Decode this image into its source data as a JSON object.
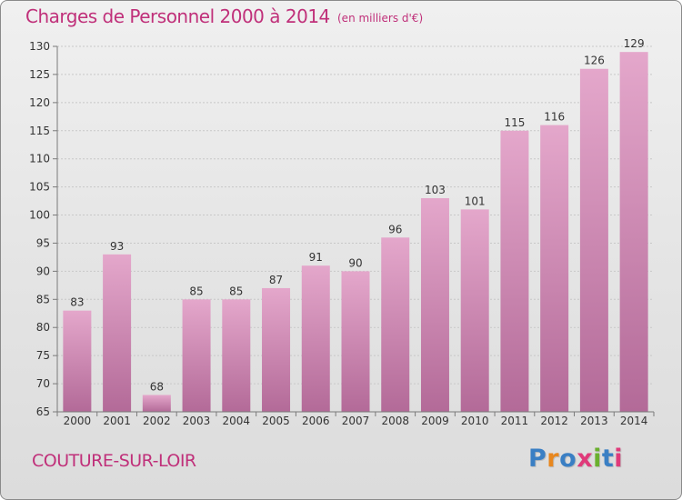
{
  "header": {
    "title": "Charges de Personnel 2000 à 2014",
    "subtitle": "(en milliers d'€)"
  },
  "footer": {
    "town": "COUTURE-SUR-LOIR",
    "logo_text": "Proxiti",
    "logo_colors": [
      "#3a7fc4",
      "#e8871e",
      "#3a7fc4",
      "#e03a7a",
      "#6ab02e",
      "#3a7fc4",
      "#e03a7a"
    ]
  },
  "colors": {
    "bar_top": "#e4a7cb",
    "bar_bottom": "#b36a98",
    "text_accent": "#c0307a",
    "gridline": "#c8c8c8"
  },
  "chart_data": {
    "type": "bar",
    "categories": [
      "2000",
      "2001",
      "2002",
      "2003",
      "2004",
      "2005",
      "2006",
      "2007",
      "2008",
      "2009",
      "2010",
      "2011",
      "2012",
      "2013",
      "2014"
    ],
    "values": [
      83,
      93,
      68,
      85,
      85,
      87,
      91,
      90,
      96,
      103,
      101,
      115,
      116,
      126,
      129
    ],
    "data_labels": [
      "83",
      "93",
      "68",
      "85",
      "85",
      "87",
      "91",
      "90",
      "96",
      "103",
      "101",
      "115",
      "116",
      "126",
      "129"
    ],
    "yticks": [
      "65",
      "70",
      "75",
      "80",
      "85",
      "90",
      "95",
      "100",
      "105",
      "110",
      "115",
      "120",
      "125",
      "130"
    ],
    "ylim": [
      65,
      130
    ],
    "title": "Charges de Personnel 2000 à 2014",
    "xlabel": "",
    "ylabel": "",
    "grid": true,
    "legend": "none"
  }
}
